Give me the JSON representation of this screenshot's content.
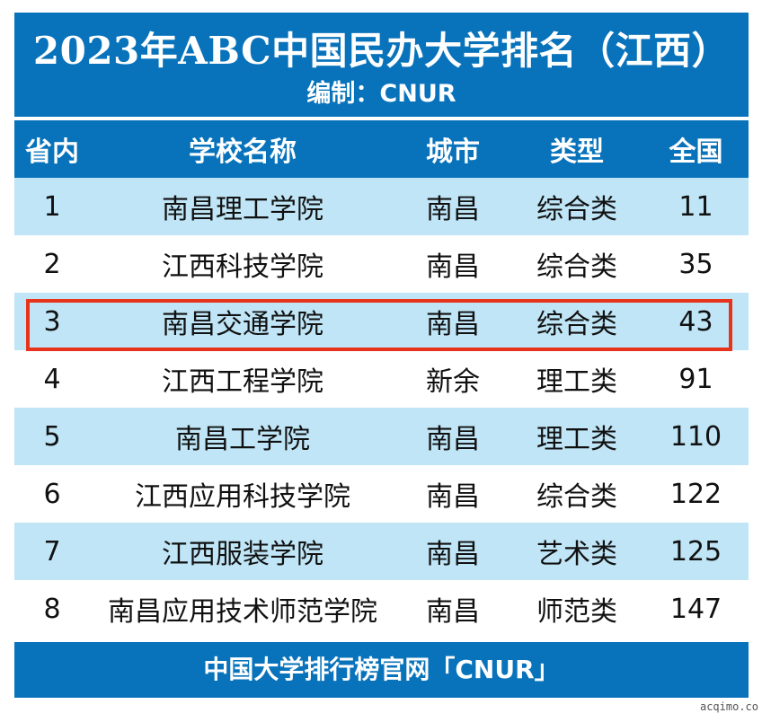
{
  "header": {
    "title": "2023年ABC中国民办大学排名（江西）",
    "subtitle": "编制：CNUR"
  },
  "columns": [
    "省内",
    "学校名称",
    "城市",
    "类型",
    "全国"
  ],
  "rows": [
    {
      "rank": "1",
      "name": "南昌理工学院",
      "city": "南昌",
      "type": "综合类",
      "national": "11"
    },
    {
      "rank": "2",
      "name": "江西科技学院",
      "city": "南昌",
      "type": "综合类",
      "national": "35"
    },
    {
      "rank": "3",
      "name": "南昌交通学院",
      "city": "南昌",
      "type": "综合类",
      "national": "43"
    },
    {
      "rank": "4",
      "name": "江西工程学院",
      "city": "新余",
      "type": "理工类",
      "national": "91"
    },
    {
      "rank": "5",
      "name": "南昌工学院",
      "city": "南昌",
      "type": "理工类",
      "national": "110"
    },
    {
      "rank": "6",
      "name": "江西应用科技学院",
      "city": "南昌",
      "type": "综合类",
      "national": "122"
    },
    {
      "rank": "7",
      "name": "江西服装学院",
      "city": "南昌",
      "type": "艺术类",
      "national": "125"
    },
    {
      "rank": "8",
      "name": "南昌应用技术师范学院",
      "city": "南昌",
      "type": "师范类",
      "national": "147"
    }
  ],
  "footer": {
    "text": "中国大学排行榜官网「CNUR」"
  },
  "highlighted_row": 3,
  "watermark": "acqimo.co",
  "colors": {
    "header_blue": "#0873bb",
    "row_light_blue": "#bfe5f6",
    "highlight_red": "#e8331c"
  }
}
